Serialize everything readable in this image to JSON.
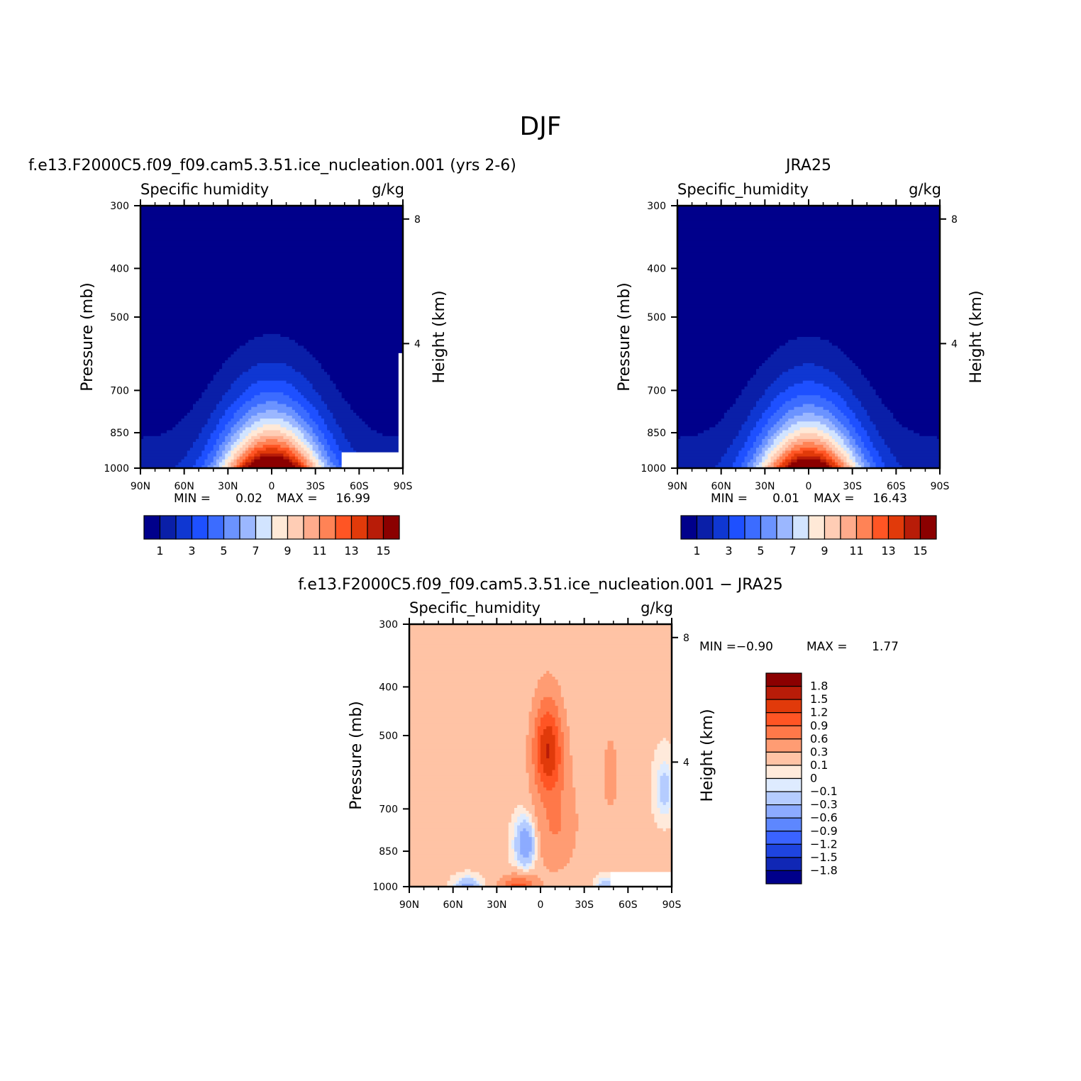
{
  "figure": {
    "title": "DJF"
  },
  "chart_data": [
    {
      "type": "heatmap",
      "id": "model",
      "title": "f.e13.F2000C5.f09_f09.cam5.3.51.ice_nucleation.001 (yrs 2-6)",
      "left_label": "Specific humidity",
      "right_label": "g/kg",
      "xlabel": "",
      "ylabel": "Pressure (mb)",
      "y2label": "Height (km)",
      "x_ticks": [
        "90N",
        "60N",
        "30N",
        "0",
        "30S",
        "60S",
        "90S"
      ],
      "y_ticks": [
        "300",
        "400",
        "500",
        "700",
        "850",
        "1000"
      ],
      "y_tick_values": [
        300,
        400,
        500,
        700,
        850,
        1000
      ],
      "y2_ticks": [
        "8",
        "4"
      ],
      "y2_tick_values": [
        8,
        4
      ],
      "ylim": [
        1000,
        300
      ],
      "xlim": [
        90,
        -90
      ],
      "min_label": "MIN =",
      "min_value": "0.02",
      "max_label": "MAX =",
      "max_value": "16.99",
      "colorbar_labels": [
        "1",
        "3",
        "5",
        "7",
        "9",
        "11",
        "13",
        "15"
      ],
      "max_value_num": 16.99
    },
    {
      "type": "heatmap",
      "id": "obs",
      "title": "JRA25",
      "left_label": "Specific_humidity",
      "right_label": "g/kg",
      "xlabel": "",
      "ylabel": "Pressure (mb)",
      "y2label": "Height (km)",
      "x_ticks": [
        "90N",
        "60N",
        "30N",
        "0",
        "30S",
        "60S",
        "90S"
      ],
      "y_ticks": [
        "300",
        "400",
        "500",
        "700",
        "850",
        "1000"
      ],
      "y_tick_values": [
        300,
        400,
        500,
        700,
        850,
        1000
      ],
      "y2_ticks": [
        "8",
        "4"
      ],
      "y2_tick_values": [
        8,
        4
      ],
      "ylim": [
        1000,
        300
      ],
      "xlim": [
        90,
        -90
      ],
      "min_label": "MIN =",
      "min_value": "0.01",
      "max_label": "MAX =",
      "max_value": "16.43",
      "colorbar_labels": [
        "1",
        "3",
        "5",
        "7",
        "9",
        "11",
        "13",
        "15"
      ],
      "max_value_num": 16.43
    },
    {
      "type": "heatmap",
      "id": "diff",
      "title": "f.e13.F2000C5.f09_f09.cam5.3.51.ice_nucleation.001 − JRA25",
      "left_label": "Specific_humidity",
      "right_label": "g/kg",
      "xlabel": "",
      "ylabel": "Pressure (mb)",
      "y2label": "Height (km)",
      "x_ticks": [
        "90N",
        "60N",
        "30N",
        "0",
        "30S",
        "60S",
        "90S"
      ],
      "y_ticks": [
        "300",
        "400",
        "500",
        "700",
        "850",
        "1000"
      ],
      "y_tick_values": [
        300,
        400,
        500,
        700,
        850,
        1000
      ],
      "y2_ticks": [
        "8",
        "4"
      ],
      "y2_tick_values": [
        8,
        4
      ],
      "ylim": [
        1000,
        300
      ],
      "xlim": [
        90,
        -90
      ],
      "min_label": "MIN =",
      "min_value": "−0.90",
      "max_label": "MAX =",
      "max_value": "1.77",
      "colorbar_labels": [
        "1.8",
        "1.5",
        "1.2",
        "0.9",
        "0.6",
        "0.3",
        "0.1",
        "0",
        "−0.1",
        "−0.3",
        "−0.6",
        "−0.9",
        "−1.2",
        "−1.5",
        "−1.8"
      ]
    }
  ],
  "colors": {
    "main_scale": [
      "#00008b",
      "#0a1fa8",
      "#0f37d2",
      "#1e50ff",
      "#3c6cff",
      "#6b93ff",
      "#9bb7ff",
      "#d2e4ff",
      "#ffe9d7",
      "#ffcdb5",
      "#ffab8c",
      "#ff8356",
      "#ff5524",
      "#e13a0a",
      "#b81c08",
      "#8b0000"
    ],
    "diff_scale": [
      "#8b0000",
      "#b81c08",
      "#e13a0a",
      "#ff5524",
      "#ff7849",
      "#ff9c73",
      "#ffc3a5",
      "#ffeadb",
      "#deebff",
      "#b5ccff",
      "#8cabff",
      "#5d87ff",
      "#3a63ff",
      "#1e44e0",
      "#1027b5",
      "#00008b"
    ]
  }
}
